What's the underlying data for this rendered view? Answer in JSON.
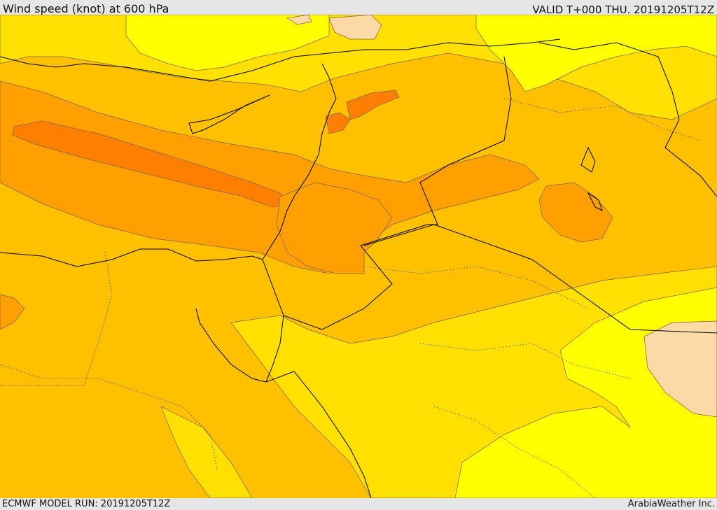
{
  "header": {
    "title": "Wind speed (knot) at 600 hPa",
    "valid": "VALID T+000 THU. 20191205T12Z"
  },
  "footer": {
    "model_run": "ECMWF MODEL RUN: 20191205T12Z",
    "credit": "ArabiaWeather Inc."
  },
  "map": {
    "colors": {
      "pale": "#fddaa5",
      "light_yellow": "#ffff00",
      "yellow": "#ffe000",
      "light_orange": "#ffc000",
      "orange": "#ffa000",
      "dark_orange": "#ff8000",
      "contour": "#806040",
      "border": "#000000"
    }
  }
}
